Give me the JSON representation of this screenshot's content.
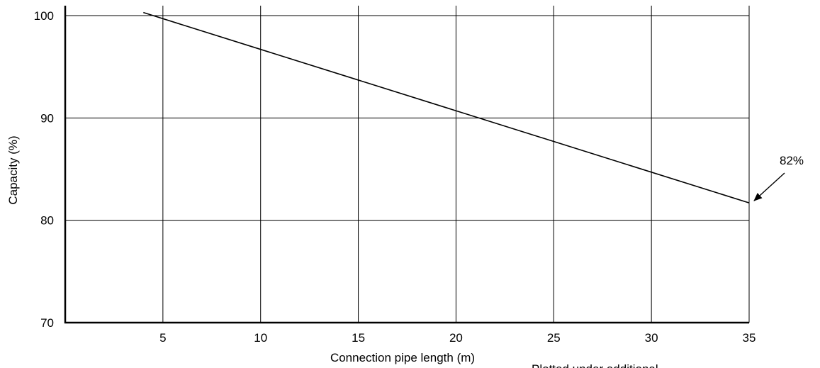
{
  "chart_data": {
    "type": "line",
    "title": "",
    "xlabel": "Connection pipe length (m)",
    "ylabel": "Capacity (%)",
    "xlim": [
      0,
      35
    ],
    "ylim": [
      70,
      100
    ],
    "x_ticks": [
      5,
      10,
      15,
      20,
      25,
      30,
      35
    ],
    "y_ticks": [
      70,
      80,
      90,
      100
    ],
    "grid": true,
    "line_color": "#000000",
    "series": [
      {
        "x": [
          4,
          35
        ],
        "y": [
          100.3,
          81.7
        ]
      }
    ],
    "annotations": [
      {
        "text": "82%",
        "x": 35,
        "y": 81.7
      }
    ],
    "footnote": "Plotted under additional"
  }
}
